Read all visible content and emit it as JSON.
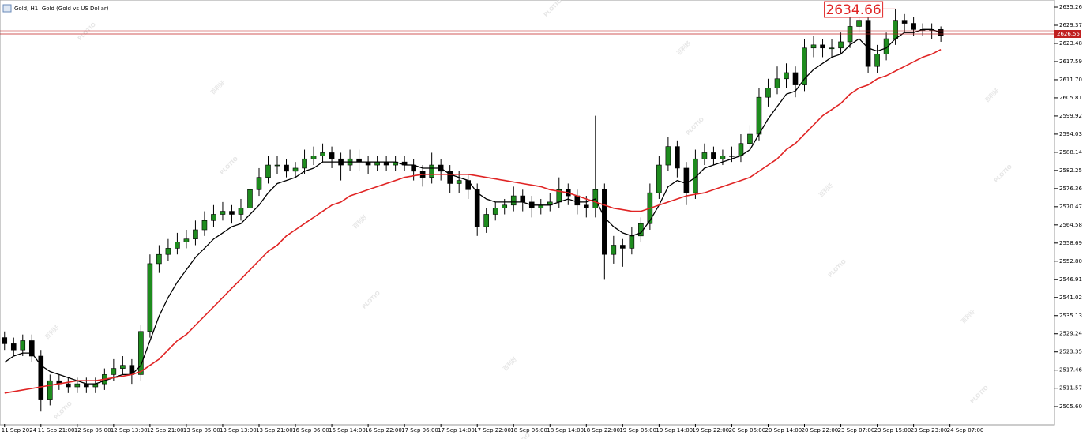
{
  "chart_data": {
    "type": "candlestick",
    "title": "Gold, H1: Gold (Gold vs US Dollar)",
    "watermark": {
      "brand": "PLOTIO",
      "chinese": "百利好"
    },
    "bid": 2626.55,
    "bull_color": "#1e8c1e",
    "bear_color": "#000000",
    "ylim": [
      2499.96,
      2637.57
    ],
    "yticks": [
      2635.26,
      2629.37,
      2623.48,
      2617.59,
      {
        "value": 2611.7,
        "label": "2611.70"
      },
      2605.81,
      2599.92,
      2594.03,
      2588.14,
      2582.25,
      2576.36,
      2570.47,
      2564.58,
      2558.69,
      {
        "value": 2552.8,
        "label": "2552.80"
      },
      2546.91,
      2541.02,
      2535.13,
      2529.24,
      2523.35,
      2517.46,
      2511.57,
      {
        "value": 2505.6,
        "label": "2505.60"
      }
    ],
    "xlim": [
      -0.5,
      115.5
    ],
    "xticks": [
      {
        "value": 0,
        "label": "11 Sep 2024"
      },
      {
        "value": 4,
        "label": "11 Sep 21:00"
      },
      {
        "value": 8,
        "label": "12 Sep 05:00"
      },
      {
        "value": 12,
        "label": "12 Sep 13:00"
      },
      {
        "value": 16,
        "label": "12 Sep 21:00"
      },
      {
        "value": 20,
        "label": "13 Sep 05:00"
      },
      {
        "value": 24,
        "label": "13 Sep 13:00"
      },
      {
        "value": 28,
        "label": "13 Sep 21:00"
      },
      {
        "value": 32,
        "label": "16 Sep 06:00"
      },
      {
        "value": 36,
        "label": "16 Sep 14:00"
      },
      {
        "value": 40,
        "label": "16 Sep 22:00"
      },
      {
        "value": 44,
        "label": "17 Sep 06:00"
      },
      {
        "value": 48,
        "label": "17 Sep 14:00"
      },
      {
        "value": 52,
        "label": "17 Sep 22:00"
      },
      {
        "value": 56,
        "label": "18 Sep 06:00"
      },
      {
        "value": 60,
        "label": "18 Sep 14:00"
      },
      {
        "value": 64,
        "label": "18 Sep 22:00"
      },
      {
        "value": 68,
        "label": "19 Sep 06:00"
      },
      {
        "value": 72,
        "label": "19 Sep 14:00"
      },
      {
        "value": 76,
        "label": "19 Sep 22:00"
      },
      {
        "value": 80,
        "label": "20 Sep 06:00"
      },
      {
        "value": 84,
        "label": "20 Sep 14:00"
      },
      {
        "value": 88,
        "label": "20 Sep 22:00"
      },
      {
        "value": 92,
        "label": "23 Sep 07:00"
      },
      {
        "value": 96,
        "label": "23 Sep 15:00"
      },
      {
        "value": 100,
        "label": "23 Sep 23:00"
      },
      {
        "value": 104,
        "label": "24 Sep 07:00"
      }
    ],
    "open": [
      2528,
      2526,
      2524,
      2527,
      2522,
      2508,
      2514,
      2513,
      2512,
      2513,
      2512,
      2513,
      2516,
      2518,
      2519,
      2516,
      2530,
      2552,
      2555,
      2557,
      2559,
      2560,
      2563,
      2566,
      2568,
      2569,
      2568,
      2570,
      2576,
      2580,
      2584,
      2584,
      2582,
      2583,
      2586,
      2587,
      2588,
      2586,
      2584,
      2586,
      2585,
      2584,
      2585,
      2584,
      2585,
      2584,
      2582,
      2580,
      2584,
      2582,
      2578,
      2579,
      2576,
      2564,
      2568,
      2570,
      2571,
      2574,
      2572,
      2570,
      2571,
      2572,
      2576,
      2574,
      2571,
      2570,
      2576,
      2555,
      2558,
      2557,
      2561,
      2565,
      2575,
      2584,
      2590,
      2583,
      2575,
      2586,
      2588,
      2586,
      2587,
      2587,
      2591,
      2594,
      2606,
      2609,
      2612,
      2614,
      2610,
      2622,
      2623,
      2622,
      2622,
      2624,
      2629,
      2631,
      2616,
      2620,
      2625,
      2631,
      2630,
      2628,
      2628,
      2628
    ],
    "high": [
      2530,
      2528,
      2529,
      2529,
      2524,
      2516,
      2516,
      2515,
      2515,
      2515,
      2515,
      2518,
      2521,
      2522,
      2521,
      2532,
      2555,
      2558,
      2560,
      2562,
      2563,
      2566,
      2569,
      2571,
      2572,
      2571,
      2573,
      2579,
      2583,
      2587,
      2587,
      2586,
      2585,
      2589,
      2590,
      2591,
      2590,
      2588,
      2589,
      2589,
      2587,
      2587,
      2587,
      2587,
      2587,
      2586,
      2584,
      2588,
      2586,
      2584,
      2582,
      2581,
      2578,
      2570,
      2572,
      2573,
      2577,
      2576,
      2574,
      2573,
      2575,
      2580,
      2578,
      2576,
      2574,
      2600,
      2578,
      2561,
      2560,
      2564,
      2567,
      2578,
      2587,
      2593,
      2592,
      2585,
      2589,
      2591,
      2590,
      2589,
      2590,
      2594,
      2597,
      2609,
      2612,
      2616,
      2617,
      2616,
      2625,
      2626,
      2625,
      2625,
      2627,
      2632,
      2633,
      2632,
      2623,
      2627,
      2634.66,
      2633,
      2632,
      2630,
      2630,
      2629
    ],
    "low": [
      2524,
      2522,
      2522,
      2520,
      2504,
      2506,
      2511,
      2510,
      2510,
      2510,
      2510,
      2511,
      2514,
      2516,
      2513,
      2514,
      2528,
      2549,
      2553,
      2555,
      2557,
      2558,
      2561,
      2564,
      2566,
      2565,
      2566,
      2568,
      2574,
      2578,
      2581,
      2580,
      2580,
      2581,
      2584,
      2585,
      2583,
      2579,
      2582,
      2582,
      2581,
      2582,
      2582,
      2582,
      2582,
      2579,
      2577,
      2578,
      2579,
      2575,
      2575,
      2573,
      2561,
      2562,
      2566,
      2568,
      2569,
      2569,
      2567,
      2568,
      2569,
      2570,
      2571,
      2568,
      2567,
      2567,
      2547,
      2552,
      2551,
      2555,
      2559,
      2563,
      2573,
      2582,
      2580,
      2571,
      2573,
      2584,
      2584,
      2584,
      2585,
      2585,
      2589,
      2592,
      2603,
      2607,
      2609,
      2606,
      2608,
      2619,
      2619,
      2619,
      2620,
      2622,
      2627,
      2614,
      2614,
      2618,
      2623,
      2627,
      2626,
      2626,
      2625,
      2624
    ],
    "close": [
      2526,
      2524,
      2527,
      2522,
      2508,
      2514,
      2513,
      2512,
      2513,
      2512,
      2513,
      2516,
      2518,
      2519,
      2516,
      2530,
      2552,
      2555,
      2557,
      2559,
      2560,
      2563,
      2566,
      2568,
      2569,
      2568,
      2570,
      2576,
      2580,
      2584,
      2584,
      2582,
      2583,
      2586,
      2587,
      2588,
      2586,
      2584,
      2586,
      2585,
      2584,
      2585,
      2584,
      2585,
      2584,
      2582,
      2580,
      2584,
      2582,
      2578,
      2579,
      2576,
      2564,
      2568,
      2570,
      2571,
      2574,
      2572,
      2570,
      2571,
      2572,
      2576,
      2574,
      2571,
      2570,
      2576,
      2555,
      2558,
      2557,
      2561,
      2565,
      2575,
      2584,
      2590,
      2583,
      2575,
      2586,
      2588,
      2586,
      2587,
      2587,
      2591,
      2594,
      2606,
      2609,
      2612,
      2614,
      2610,
      2622,
      2623,
      2622,
      2622,
      2624,
      2629,
      2631,
      2616,
      2620,
      2625,
      2631,
      2630,
      2628,
      2628,
      2628,
      2626
    ],
    "lines": [
      {
        "color": "#000000",
        "values": [
          2520,
          2522,
          2523,
          2523,
          2519,
          2517,
          2516,
          2515,
          2514,
          2513,
          2513,
          2514,
          2515,
          2516,
          2516,
          2519,
          2527,
          2535,
          2541,
          2546,
          2550,
          2554,
          2557,
          2560,
          2562,
          2564,
          2565,
          2568,
          2571,
          2575,
          2578,
          2579,
          2580,
          2582,
          2583,
          2585,
          2585,
          2585,
          2585,
          2585,
          2585,
          2585,
          2585,
          2585,
          2584,
          2584,
          2583,
          2583,
          2583,
          2581,
          2580,
          2579,
          2575,
          2573,
          2572,
          2572,
          2572,
          2572,
          2571,
          2571,
          2571,
          2572,
          2573,
          2572,
          2572,
          2573,
          2567,
          2564,
          2562,
          2561,
          2562,
          2566,
          2571,
          2577,
          2579,
          2578,
          2580,
          2583,
          2584,
          2585,
          2586,
          2587,
          2589,
          2594,
          2599,
          2603,
          2607,
          2608,
          2612,
          2615,
          2617,
          2619,
          2620,
          2623,
          2625,
          2622,
          2621,
          2622,
          2625,
          2627,
          2627,
          2628,
          2628,
          2627
        ]
      },
      {
        "color": "#e02424",
        "values": [
          2510,
          2510.5,
          2511,
          2511.5,
          2512,
          2512.5,
          2513,
          2513.5,
          2514,
          2514,
          2514,
          2514.5,
          2515,
          2515.5,
          2516,
          2517,
          2519,
          2521,
          2524,
          2527,
          2529,
          2532,
          2535,
          2538,
          2541,
          2544,
          2547,
          2550,
          2553,
          2556,
          2558,
          2561,
          2563,
          2565,
          2567,
          2569,
          2571,
          2572,
          2574,
          2575,
          2576,
          2577,
          2578,
          2579,
          2580,
          2580.5,
          2581,
          2581,
          2581,
          2581,
          2581,
          2581,
          2580.5,
          2580,
          2579.5,
          2579,
          2578.5,
          2578,
          2577.5,
          2577,
          2576,
          2575.5,
          2575,
          2574,
          2573,
          2572,
          2571,
          2570,
          2569.5,
          2569,
          2569,
          2570,
          2571,
          2572,
          2573,
          2574,
          2574.5,
          2575,
          2576,
          2577,
          2578,
          2579,
          2580,
          2582,
          2584,
          2586,
          2589,
          2591,
          2594,
          2597,
          2600,
          2602,
          2604,
          2607,
          2609,
          2610,
          2612,
          2613,
          2614.5,
          2616,
          2617.5,
          2619,
          2620,
          2621.5
        ]
      }
    ]
  }
}
